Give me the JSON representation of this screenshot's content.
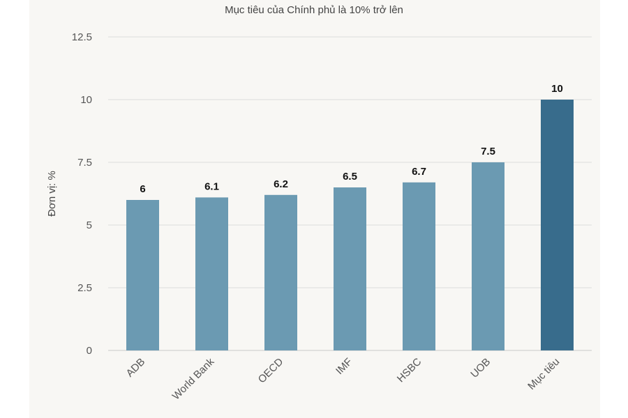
{
  "chart_data": {
    "type": "bar",
    "title": "Mục tiêu của Chính phủ là 10% trở lên",
    "ylabel": "Đơn vị: %",
    "xlabel": "",
    "categories": [
      "ADB",
      "World Bank",
      "OECD",
      "IMF",
      "HSBC",
      "UOB",
      "Mục tiêu"
    ],
    "values": [
      6,
      6.1,
      6.2,
      6.5,
      6.7,
      7.5,
      10
    ],
    "data_labels": [
      "6",
      "6.1",
      "6.2",
      "6.5",
      "6.7",
      "7.5",
      "10"
    ],
    "ylim": [
      0,
      12.5
    ],
    "yticks": [
      "0",
      "2.5",
      "5",
      "7.5",
      "10",
      "12.5"
    ],
    "grid": true,
    "colors": {
      "bar": "#6b9ab2",
      "highlight_bar": "#386c8c",
      "grid": "#dddddd"
    },
    "highlight_index": 6
  }
}
